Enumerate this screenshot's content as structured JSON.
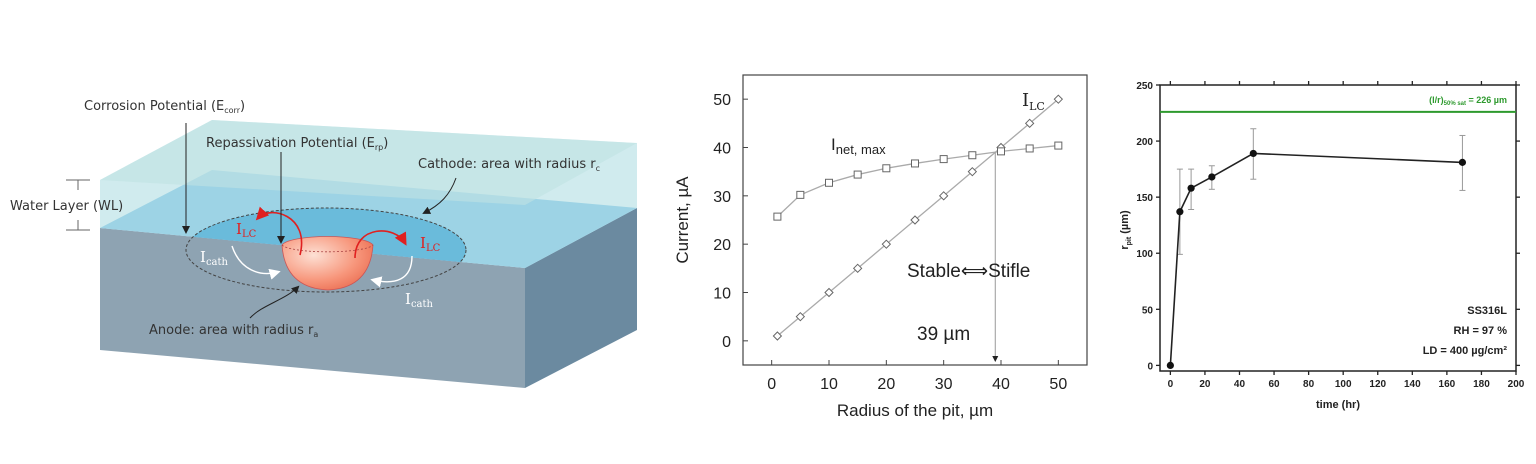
{
  "diagram": {
    "corrosion": {
      "text": "Corrosion Potential (E",
      "sub": "corr",
      "end": ")"
    },
    "repassivation": {
      "text": "Repassivation Potential (E",
      "sub": "rp",
      "end": ")"
    },
    "cathode": {
      "text": "Cathode: area with radius r",
      "sub": "c"
    },
    "water_layer": "Water Layer (WL)",
    "anode": {
      "text": "Anode: area with radius r",
      "sub": "a"
    },
    "ilc": {
      "text": "I",
      "sub": "LC"
    },
    "icath": {
      "text": "I",
      "sub": "cath"
    },
    "colors": {
      "water": "#a9dbe0",
      "metal_top": "#8ecbeb",
      "cathode": "#1e96d6",
      "front": "#8ea3b2",
      "side": "#6b8aa0",
      "anode": "#f4876a",
      "current": "#e02020"
    }
  },
  "chart_data": [
    {
      "type": "line",
      "title": "",
      "xlabel": "Radius of the pit, µm",
      "ylabel": "Current, µA",
      "xlim": [
        -5,
        55
      ],
      "ylim": [
        -5,
        55
      ],
      "xticks": [
        0,
        10,
        20,
        30,
        40,
        50
      ],
      "yticks": [
        0,
        10,
        20,
        30,
        40,
        50
      ],
      "grid": false,
      "series": [
        {
          "name": "I_LC",
          "label": "I",
          "label_sub": "LC",
          "marker": "diamond",
          "x": [
            1,
            5,
            10,
            15,
            20,
            25,
            30,
            35,
            40,
            45,
            50
          ],
          "y": [
            1,
            5,
            10,
            15,
            20,
            25,
            30,
            35,
            40,
            45,
            50
          ]
        },
        {
          "name": "I_net,max",
          "label": "I",
          "label_sub": "net, max",
          "marker": "square",
          "x": [
            1,
            5,
            10,
            15,
            20,
            25,
            30,
            35,
            40,
            45,
            50
          ],
          "y": [
            25.7,
            30.2,
            32.7,
            34.4,
            35.7,
            36.7,
            37.6,
            38.4,
            39.2,
            39.8,
            40.4
          ]
        }
      ],
      "annotations": {
        "transition": "Stable⟺Stifle",
        "critical_radius": "39 µm",
        "critical_x": 39
      }
    },
    {
      "type": "line",
      "title": "",
      "xlabel": "time (hr)",
      "ylabel": "r",
      "ylabel_sub": "pit",
      "ylabel_end": " (µm)",
      "xlim": [
        -6,
        200
      ],
      "ylim": [
        -5,
        250
      ],
      "xticks": [
        0,
        20,
        40,
        60,
        80,
        100,
        120,
        140,
        160,
        180,
        200
      ],
      "yticks": [
        0,
        50,
        100,
        150,
        200,
        250
      ],
      "grid": false,
      "series": [
        {
          "name": "r_pit",
          "x": [
            0,
            5.5,
            12,
            24,
            48,
            169
          ],
          "y": [
            0,
            137,
            158,
            168,
            189,
            181
          ],
          "err_low": [
            0,
            99,
            139,
            157,
            166,
            156
          ],
          "err_high": [
            0,
            175,
            175,
            178,
            211,
            205
          ]
        }
      ],
      "reference_line": {
        "y": 226,
        "label": "(l/r)",
        "label_sub": "50% sat",
        "label_end": " = 226 µm",
        "color": "#2e9a2e"
      },
      "annotations": [
        "SS316L",
        "RH = 97 %",
        "LD = 400 µg/cm²"
      ]
    }
  ]
}
